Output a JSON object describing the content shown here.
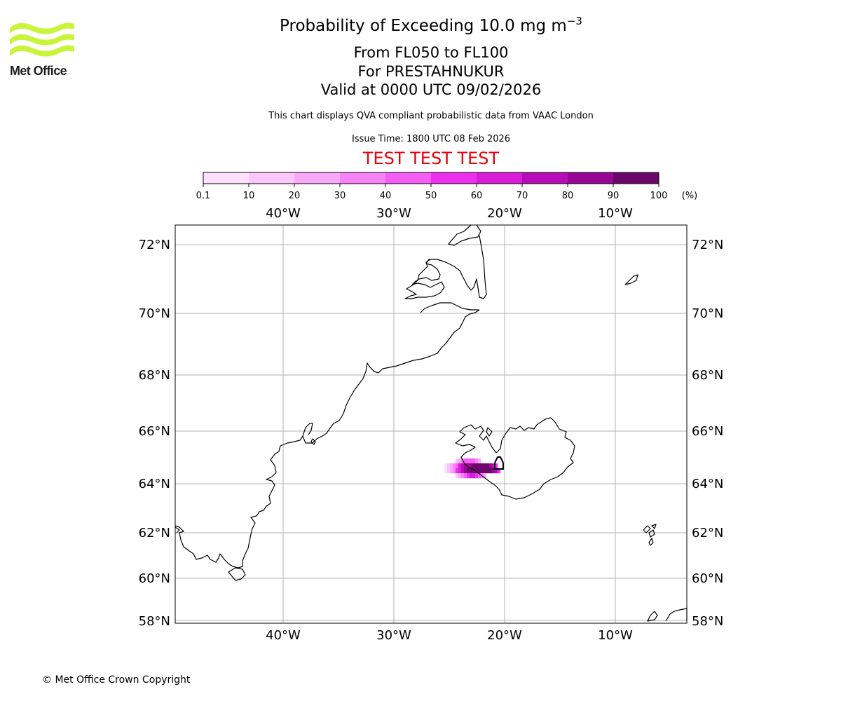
{
  "logo": {
    "text": "Met Office",
    "color": "#c8f53a"
  },
  "title": {
    "line1_main": "Probability of Exceeding 10.0 mg m",
    "line1_sup": "−3",
    "line2": "From FL050 to FL100",
    "line3": "For PRESTAHNUKUR",
    "line4": "Valid at 0000 UTC 09/02/2026"
  },
  "subtitle": "This chart displays QVA compliant probabilistic data from VAAC London",
  "issue_time": "Issue Time: 1800 UTC 08 Feb 2026",
  "test_banner": "TEST TEST TEST",
  "colorbar": {
    "tick_labels": [
      "0.1",
      "10",
      "20",
      "30",
      "40",
      "50",
      "60",
      "70",
      "80",
      "90",
      "100"
    ],
    "unit_label": "(%)",
    "colors": [
      "#fde0fd",
      "#fbc6fb",
      "#f9a8f9",
      "#f783f7",
      "#f45ef4",
      "#ee2fee",
      "#d81cd8",
      "#b90cb9",
      "#960796",
      "#6c066c"
    ]
  },
  "map": {
    "lon_labels": [
      "40°W",
      "30°W",
      "20°W",
      "10°W"
    ],
    "lat_labels": [
      "72°N",
      "70°N",
      "68°N",
      "66°N",
      "64°N",
      "62°N",
      "60°N",
      "58°N"
    ],
    "volcano_marker": "volcano-symbol"
  },
  "copyright": "© Met Office Crown Copyright"
}
